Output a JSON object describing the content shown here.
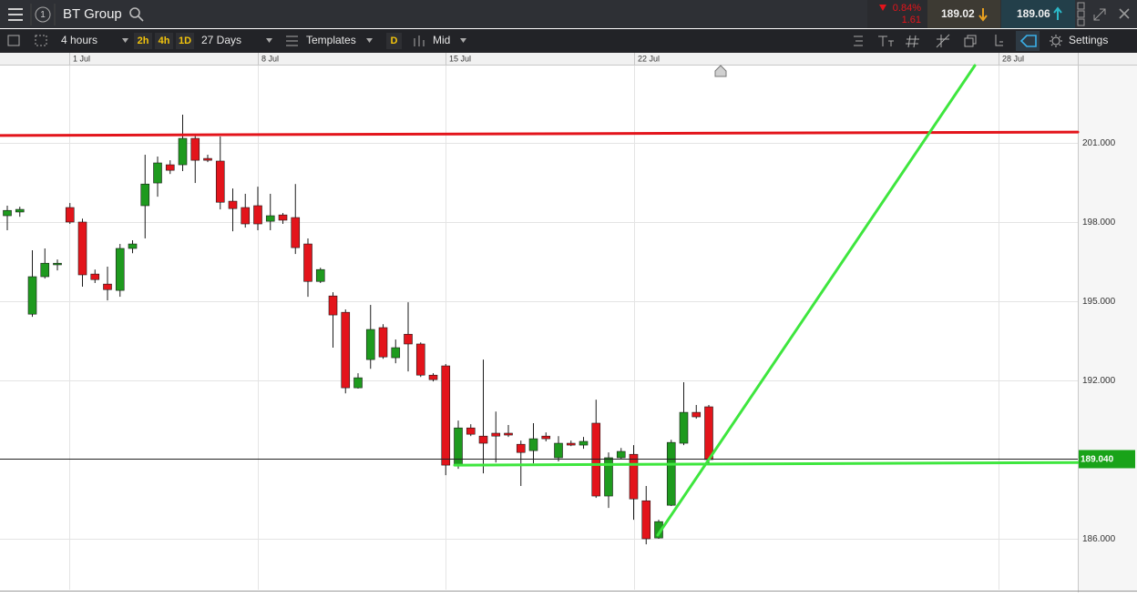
{
  "header": {
    "instrument": "BT Group",
    "badge": "1",
    "change_pct": "0.84%",
    "change": "1.61",
    "sell": "189.02",
    "buy": "189.06"
  },
  "toolbar": {
    "interval": "4 hours",
    "quick_intervals": [
      "2h",
      "4h",
      "1D"
    ],
    "range": "27 Days",
    "templates": "Templates",
    "d": "D",
    "price_type": "Mid",
    "settings": "Settings"
  },
  "chart_data": {
    "type": "candlestick",
    "x_labels": [
      "1 Jul",
      "8 Jul",
      "15 Jul",
      "22 Jul",
      "28 Jul"
    ],
    "open": [
      198.24,
      198.38,
      194.51,
      195.93,
      196.38,
      198.55,
      198.0,
      196.03,
      195.65,
      195.41,
      197.0,
      198.62,
      199.48,
      200.17,
      200.17,
      201.17,
      200.41,
      200.31,
      198.79,
      198.55,
      198.62,
      198.03,
      198.27,
      198.17,
      197.17,
      195.75,
      195.2,
      194.58,
      191.72,
      192.79,
      194.0,
      192.86,
      193.75,
      193.38,
      192.2,
      192.55,
      188.79,
      190.2,
      189.89,
      190.0,
      190.0,
      189.58,
      189.34,
      189.89,
      189.07,
      189.62,
      189.55,
      190.38,
      187.62,
      189.07,
      189.2,
      187.44,
      186.03,
      187.27,
      189.62,
      190.79,
      191.0
    ],
    "high": [
      198.62,
      198.58,
      196.93,
      197.0,
      196.58,
      198.72,
      198.13,
      196.2,
      196.31,
      197.17,
      197.31,
      200.55,
      200.48,
      200.34,
      202.07,
      201.34,
      200.55,
      201.24,
      199.27,
      199.07,
      199.34,
      199.07,
      198.34,
      199.44,
      197.38,
      196.27,
      195.34,
      194.69,
      192.27,
      194.86,
      194.13,
      193.55,
      194.96,
      193.44,
      192.27,
      192.62,
      190.48,
      190.34,
      192.79,
      190.82,
      190.31,
      189.72,
      190.38,
      190.03,
      189.89,
      189.72,
      189.86,
      191.27,
      189.27,
      189.44,
      189.55,
      188.0,
      186.72,
      189.75,
      191.93,
      191.07,
      191.07
    ],
    "low": [
      197.69,
      198.2,
      194.41,
      195.86,
      196.17,
      197.93,
      195.55,
      195.69,
      195.03,
      195.17,
      196.82,
      197.38,
      198.96,
      199.82,
      199.93,
      199.48,
      200.27,
      198.48,
      197.65,
      197.79,
      197.69,
      197.69,
      197.93,
      196.79,
      195.17,
      195.69,
      193.24,
      191.51,
      191.69,
      192.44,
      192.82,
      192.65,
      192.34,
      192.13,
      191.96,
      188.41,
      188.65,
      189.89,
      188.48,
      188.89,
      189.86,
      188.0,
      188.86,
      189.69,
      188.93,
      189.51,
      189.41,
      187.55,
      187.17,
      189.0,
      186.72,
      185.79,
      186.0,
      187.24,
      189.55,
      190.55,
      188.79
    ],
    "close": [
      198.44,
      198.48,
      195.93,
      196.44,
      196.44,
      198.0,
      196.0,
      195.82,
      195.44,
      197.0,
      197.17,
      199.44,
      200.24,
      199.96,
      201.17,
      200.34,
      200.34,
      198.75,
      198.51,
      197.93,
      197.93,
      198.24,
      198.07,
      197.03,
      195.75,
      196.2,
      194.48,
      191.72,
      192.1,
      193.93,
      192.89,
      193.24,
      193.38,
      192.2,
      192.03,
      188.79,
      190.2,
      189.96,
      189.62,
      189.89,
      189.93,
      189.27,
      189.79,
      189.79,
      189.62,
      189.55,
      189.69,
      187.62,
      189.07,
      189.31,
      187.51,
      186.0,
      186.65,
      189.65,
      190.79,
      190.62,
      189.0
    ],
    "up_color": "#1e9a1e",
    "down_color": "#e3141b",
    "ylim": [
      184.07,
      203.93
    ],
    "yticks": [
      {
        "value": 186,
        "label": "186.000"
      },
      {
        "value": 192,
        "label": "192.000"
      },
      {
        "value": 195,
        "label": "195.000"
      },
      {
        "value": 198,
        "label": "198.000"
      },
      {
        "value": 201,
        "label": "201.000"
      }
    ],
    "current_price": {
      "value": 189.04,
      "label": "189.040",
      "color": "#19a319"
    },
    "lines": [
      {
        "color": "#e3141b",
        "y": [
          201.28,
          201.41
        ]
      },
      {
        "color": "#3ee63e",
        "y": [
          188.79,
          188.89
        ]
      },
      {
        "color": "#3ee63e",
        "y": [
          186.14,
          203.93
        ]
      }
    ],
    "grid": true
  }
}
